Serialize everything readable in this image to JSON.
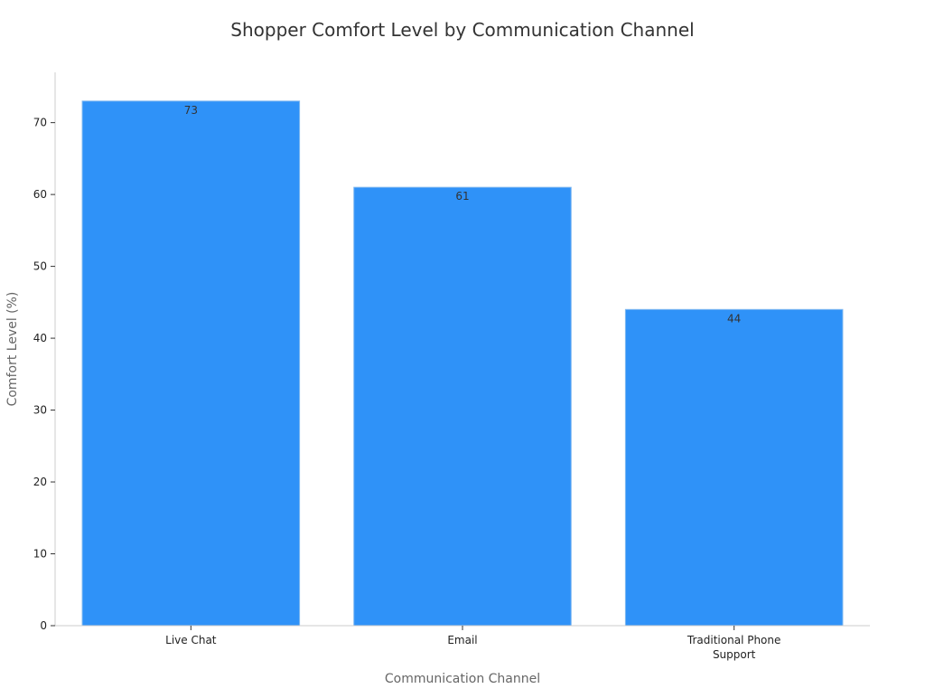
{
  "chart_data": {
    "type": "bar",
    "title": "Shopper Comfort Level by Communication Channel",
    "xlabel": "Communication Channel",
    "ylabel": "Comfort Level (%)",
    "categories": [
      [
        "Live Chat"
      ],
      [
        "Email"
      ],
      [
        "Traditional Phone",
        "Support"
      ]
    ],
    "values": [
      73,
      61,
      44
    ],
    "value_labels": [
      "73",
      "61",
      "44"
    ],
    "ylim": [
      0,
      77
    ],
    "yticks": [
      0,
      10,
      20,
      30,
      40,
      50,
      60,
      70
    ],
    "ytick_labels": [
      "0",
      "10",
      "20",
      "30",
      "40",
      "50",
      "60",
      "70"
    ],
    "grid": false,
    "legend": "none",
    "colors": {
      "bar": "#2f92f8",
      "bar_edge": "#7fb8f0",
      "axis": "#cccccc",
      "tick_text": "#222222",
      "label_text": "#666666",
      "title_text": "#333333",
      "value_text": "#333333"
    }
  }
}
